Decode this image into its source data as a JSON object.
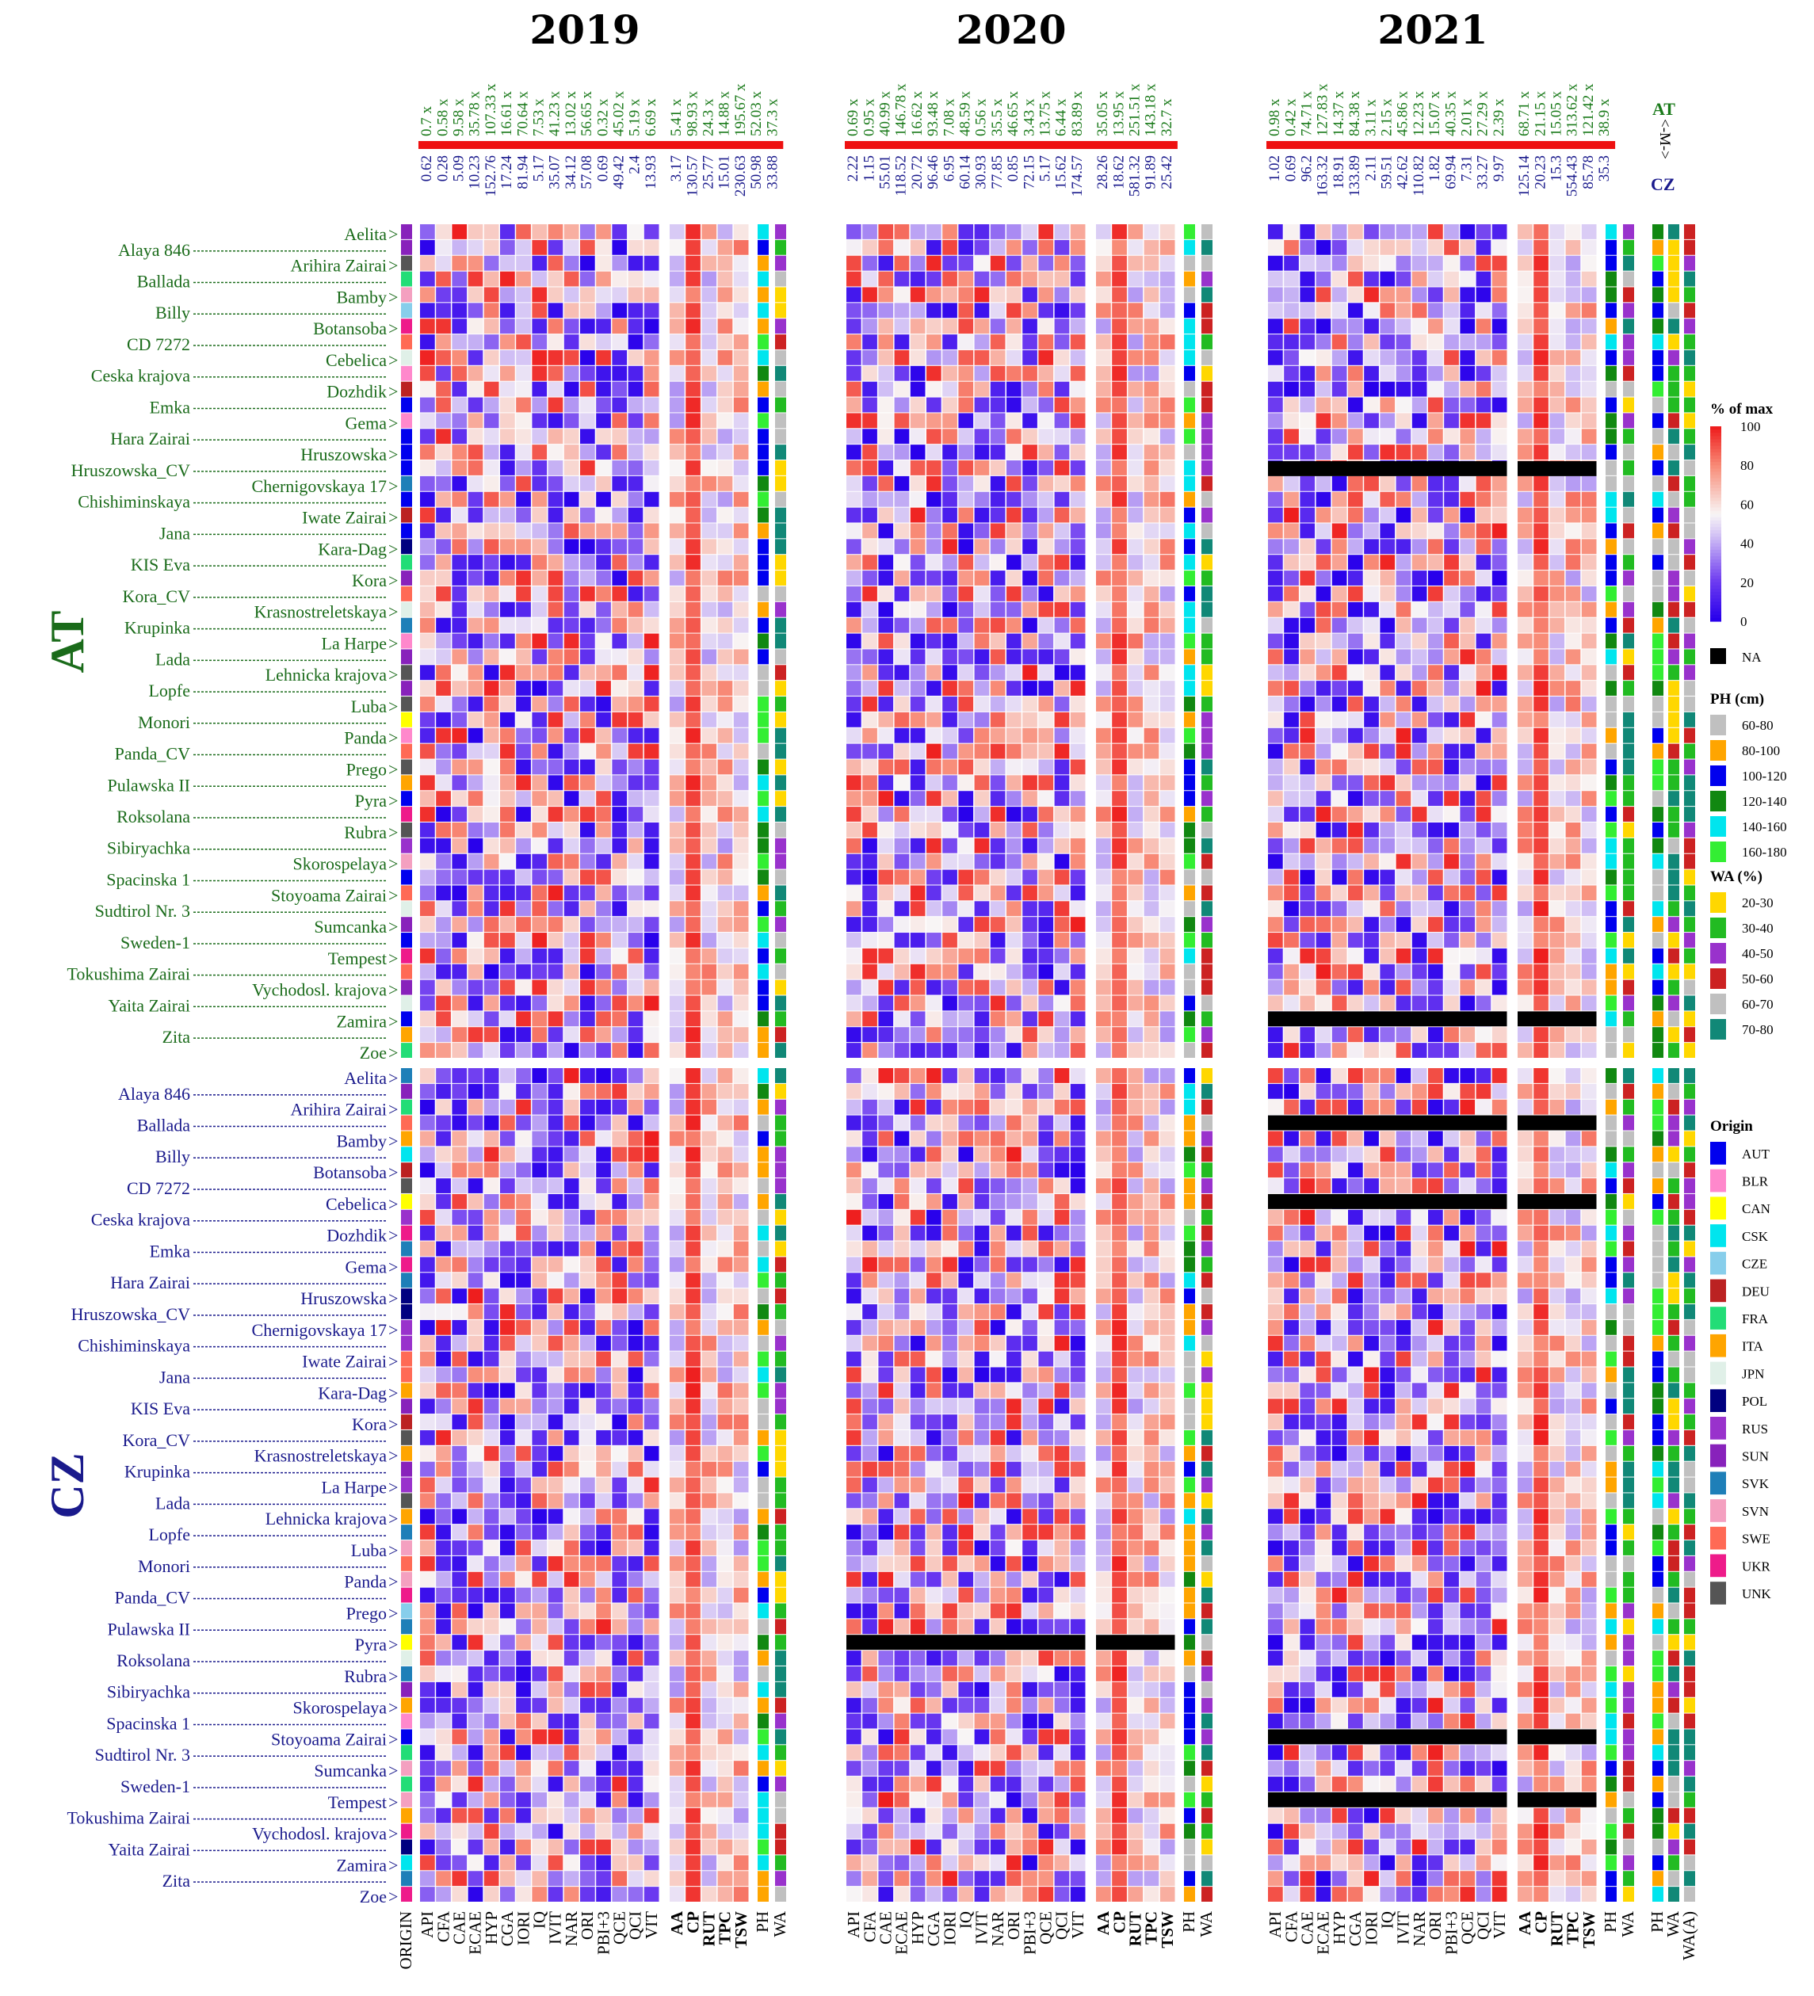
{
  "chart_data": {
    "type": "heatmap",
    "title": "",
    "years": [
      "2019",
      "2020",
      "2021"
    ],
    "groups": [
      {
        "name": "AT",
        "color": "#1a6b1a"
      },
      {
        "name": "CZ",
        "color": "#1a1a8c"
      }
    ],
    "trait_columns": [
      "API",
      "CFA",
      "CAE",
      "ECAE",
      "HYP",
      "CGA",
      "IORI",
      "IQ",
      "IVIT",
      "NAR",
      "ORI",
      "PBI+3",
      "QCE",
      "QCI",
      "VIT"
    ],
    "block_columns": [
      "AA",
      "CP",
      "RUT",
      "TPC",
      "TSW"
    ],
    "side_columns": [
      "PH",
      "WA"
    ],
    "final_columns": [
      "PH",
      "WA",
      "WA(A)"
    ],
    "origin_column": "ORIGIN",
    "row_labels_right": [
      "Aelita",
      "Arihira Zairai",
      "Bamby",
      "Botansoba",
      "Cebelica",
      "Dozhdik",
      "Gema",
      "Hruszowska",
      "Chernigovskaya 17",
      "Iwate Zairai",
      "Kara-Dag",
      "Kora",
      "Krasnostreletskaya",
      "La Harpe",
      "Lehnicka krajova",
      "Luba",
      "Panda",
      "Prego",
      "Pyra",
      "Rubra",
      "Skorospelaya",
      "Stoyoama Zairai",
      "Sumcanka",
      "Tempest",
      "Vychodosl. krajova",
      "Zamira",
      "Zoe"
    ],
    "row_labels_left": [
      "Alaya 846",
      "Ballada",
      "Billy",
      "CD 7272",
      "Ceska krajova",
      "Emka",
      "Hara Zairai",
      "Hruszowska_CV",
      "Chishiminskaya",
      "Jana",
      "KIS Eva",
      "Kora_CV",
      "Krupinka",
      "Lada",
      "Lopfe",
      "Monori",
      "Panda_CV",
      "Pulawska II",
      "Roksolana",
      "Sibiryachka",
      "Spacinska 1",
      "Sudtirol Nr. 3",
      "Sweden-1",
      "Tokushima Zairai",
      "Yaita Zairai",
      "Zita"
    ],
    "value_scale": {
      "title": "% of max",
      "ticks": [
        "100",
        "80",
        "60",
        "40",
        "20",
        "0"
      ]
    },
    "na_label": "NA",
    "mean_labels": {
      "y2019": {
        "at": [
          "0.7",
          "0.58",
          "9.58",
          "35.78",
          "107.33",
          "16.61",
          "70.64",
          "7.53",
          "41.23",
          "13.02",
          "56.65",
          "0.32",
          "45.02",
          "5.19",
          "6.69",
          "5.41",
          "98.93",
          "24.3",
          "14.88",
          "195.67",
          "52.03",
          "37.3"
        ],
        "cz": [
          "0.62",
          "0.28",
          "5.09",
          "10.23",
          "152.76",
          "17.24",
          "81.94",
          "5.17",
          "35.07",
          "34.12",
          "57.08",
          "0.69",
          "49.42",
          "2.4",
          "13.93",
          "3.17",
          "130.57",
          "25.77",
          "15.01",
          "230.63",
          "50.98",
          "33.88"
        ]
      },
      "y2020": {
        "at": [
          "0.69",
          "0.95",
          "40.99",
          "146.78",
          "16.62",
          "93.48",
          "7.08",
          "48.59",
          "0.56",
          "35.5",
          "46.65",
          "3.43",
          "13.75",
          "6.44",
          "83.89",
          "35.05",
          "13.95",
          "251.51",
          "143.18",
          "32.7"
        ],
        "cz": [
          "2.22",
          "1.15",
          "55.01",
          "118.52",
          "20.72",
          "96.46",
          "6.95",
          "60.14",
          "30.93",
          "77.85",
          "0.85",
          "72.15",
          "5.17",
          "15.62",
          "174.57",
          "28.26",
          "18.62",
          "581.32",
          "91.89",
          "25.42"
        ]
      },
      "y2021": {
        "at": [
          "0.98",
          "0.42",
          "74.71",
          "127.83",
          "14.37",
          "84.38",
          "3.11",
          "2.15",
          "45.86",
          "12.23",
          "15.07",
          "40.35",
          "2.01",
          "27.29",
          "2.39",
          "68.71",
          "21.15",
          "15.05",
          "313.62",
          "121.42",
          "38.9"
        ],
        "cz": [
          "1.02",
          "0.69",
          "96.2",
          "163.32",
          "18.91",
          "133.89",
          "2.11",
          "59.51",
          "42.62",
          "110.82",
          "1.82",
          "69.94",
          "7.31",
          "33.27",
          "9.97",
          "125.14",
          "20.23",
          "15.3",
          "554.43",
          "85.78",
          "35.3"
        ]
      }
    },
    "mean_side": {
      "at": "AT",
      "arrow": "<-M->",
      "cz": "CZ"
    },
    "legends": {
      "ph": {
        "title": "PH (cm)",
        "items": [
          {
            "label": "60-80",
            "color": "#c0c0c0"
          },
          {
            "label": "80-100",
            "color": "#ffa500"
          },
          {
            "label": "100-120",
            "color": "#0000ee"
          },
          {
            "label": "120-140",
            "color": "#118811"
          },
          {
            "label": "140-160",
            "color": "#00e5ee"
          },
          {
            "label": "160-180",
            "color": "#33ee33"
          }
        ]
      },
      "wa": {
        "title": "WA (%)",
        "items": [
          {
            "label": "20-30",
            "color": "#ffd700"
          },
          {
            "label": "30-40",
            "color": "#22bb22"
          },
          {
            "label": "40-50",
            "color": "#9932cc"
          },
          {
            "label": "50-60",
            "color": "#cc2222"
          },
          {
            "label": "60-70",
            "color": "#c0c0c0"
          },
          {
            "label": "70-80",
            "color": "#118877"
          }
        ]
      },
      "origin": {
        "title": "Origin",
        "items": [
          {
            "label": "AUT",
            "color": "#0000ee"
          },
          {
            "label": "BLR",
            "color": "#ff88cc"
          },
          {
            "label": "CAN",
            "color": "#ffff00"
          },
          {
            "label": "CSK",
            "color": "#00e5ee"
          },
          {
            "label": "CZE",
            "color": "#87ceeb"
          },
          {
            "label": "DEU",
            "color": "#bb2222"
          },
          {
            "label": "FRA",
            "color": "#22dd77"
          },
          {
            "label": "ITA",
            "color": "#ffa500"
          },
          {
            "label": "JPN",
            "color": "#e0f0e8"
          },
          {
            "label": "POL",
            "color": "#000080"
          },
          {
            "label": "RUS",
            "color": "#9932cc"
          },
          {
            "label": "SUN",
            "color": "#8822bb"
          },
          {
            "label": "SVK",
            "color": "#1e7fb8"
          },
          {
            "label": "SVN",
            "color": "#f4a0c0"
          },
          {
            "label": "SWE",
            "color": "#ff6a55"
          },
          {
            "label": "UKR",
            "color": "#ee1b8a"
          },
          {
            "label": "UNK",
            "color": "#555555"
          }
        ]
      }
    }
  }
}
